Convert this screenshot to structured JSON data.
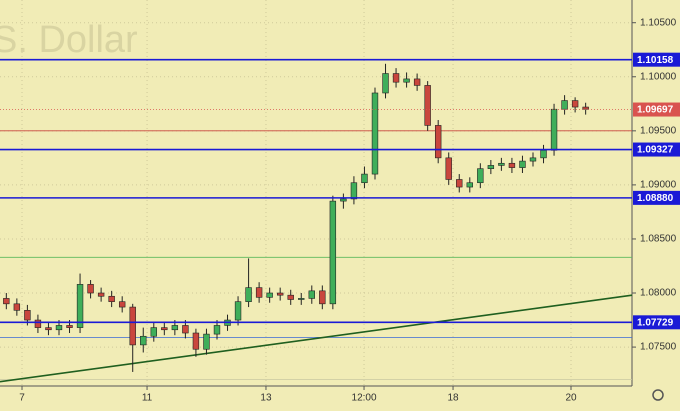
{
  "chart_data": {
    "type": "candlestick",
    "watermark": "S. Dollar",
    "xlim": [
      -0.6,
      59.4
    ],
    "xticks": [
      {
        "value": 1.49,
        "label": "7"
      },
      {
        "value": 13.36,
        "label": "11"
      },
      {
        "value": 24.65,
        "label": "13"
      },
      {
        "value": 33.96,
        "label": "12:00"
      },
      {
        "value": 42.41,
        "label": "18"
      },
      {
        "value": 53.61,
        "label": "20"
      }
    ],
    "ylim": [
      1.0714,
      1.1071
    ],
    "yticks": [
      {
        "value": 1.105,
        "label": "1.10500"
      },
      {
        "value": 1.1,
        "label": "1.10000"
      },
      {
        "value": 1.095,
        "label": "1.09500"
      },
      {
        "value": 1.09,
        "label": "1.09000"
      },
      {
        "value": 1.085,
        "label": "1.08500"
      },
      {
        "value": 1.08,
        "label": "1.08000"
      },
      {
        "value": 1.075,
        "label": "1.07500"
      }
    ],
    "grid": true,
    "up_color": "#3fae5a",
    "down_color": "#c9463d",
    "open": [
      1.0795,
      1.079,
      1.0784,
      1.0775,
      1.0768,
      1.0766,
      1.077,
      1.0768,
      1.0808,
      1.08,
      1.0797,
      1.0792,
      1.0787,
      1.0752,
      1.076,
      1.0768,
      1.0766,
      1.077,
      1.0763,
      1.0748,
      1.0762,
      1.077,
      1.0775,
      1.0792,
      1.0805,
      1.0796,
      1.08,
      1.0798,
      1.0794,
      1.0795,
      1.0802,
      1.079,
      1.0885,
      1.0887,
      1.0902,
      1.091,
      1.0985,
      1.1003,
      1.0995,
      1.0998,
      1.0992,
      1.0955,
      1.0925,
      1.0905,
      1.0898,
      1.0902,
      1.0915,
      1.0918,
      1.092,
      1.0916,
      1.0922,
      1.0925,
      1.0932,
      1.097,
      1.0978,
      1.0972
    ],
    "high": [
      1.08,
      1.0795,
      1.0789,
      1.078,
      1.0773,
      1.0775,
      1.0775,
      1.0818,
      1.0812,
      1.0805,
      1.0802,
      1.0797,
      1.079,
      1.0768,
      1.0773,
      1.0773,
      1.0775,
      1.0775,
      1.0767,
      1.0767,
      1.0775,
      1.078,
      1.0797,
      1.0832,
      1.081,
      1.0805,
      1.0805,
      1.0803,
      1.08,
      1.0807,
      1.0807,
      1.089,
      1.0892,
      1.0908,
      1.0917,
      1.099,
      1.1012,
      1.1008,
      1.1004,
      1.1003,
      1.0996,
      1.096,
      1.093,
      1.091,
      1.0907,
      1.092,
      1.0923,
      1.0925,
      1.0925,
      1.0927,
      1.093,
      1.0937,
      1.0975,
      1.0983,
      1.0981,
      1.0976
    ],
    "low": [
      1.0785,
      1.0779,
      1.077,
      1.0763,
      1.0761,
      1.0761,
      1.0763,
      1.0763,
      1.0795,
      1.0792,
      1.0787,
      1.0782,
      1.0727,
      1.0745,
      1.0755,
      1.0761,
      1.0761,
      1.0758,
      1.0741,
      1.0743,
      1.0757,
      1.0765,
      1.077,
      1.0787,
      1.0791,
      1.0791,
      1.0793,
      1.0789,
      1.0789,
      1.079,
      1.0785,
      1.0785,
      1.0878,
      1.0882,
      1.0897,
      1.0905,
      1.098,
      1.099,
      1.099,
      1.0987,
      1.095,
      1.092,
      1.09,
      1.0893,
      1.0893,
      1.0897,
      1.091,
      1.0913,
      1.0911,
      1.0911,
      1.0917,
      1.092,
      1.0927,
      1.0965,
      1.0967,
      1.0965
    ],
    "close": [
      1.079,
      1.0784,
      1.0775,
      1.0768,
      1.0766,
      1.077,
      1.0768,
      1.0808,
      1.08,
      1.0797,
      1.0792,
      1.0787,
      1.0752,
      1.076,
      1.0768,
      1.0766,
      1.077,
      1.0763,
      1.0748,
      1.0762,
      1.077,
      1.0775,
      1.0792,
      1.0805,
      1.0796,
      1.08,
      1.0798,
      1.0794,
      1.0795,
      1.0802,
      1.079,
      1.0885,
      1.0887,
      1.0902,
      1.091,
      1.0985,
      1.1003,
      1.0995,
      1.0998,
      1.0992,
      1.0955,
      1.0925,
      1.0905,
      1.0898,
      1.0902,
      1.0915,
      1.0918,
      1.092,
      1.0916,
      1.0922,
      1.0925,
      1.0932,
      1.097,
      1.0978,
      1.0972,
      1.097
    ],
    "levels": [
      {
        "value": 1.10158,
        "label": "1.10158",
        "color": "#1a1ad6"
      },
      {
        "value": 1.09327,
        "label": "1.09327",
        "color": "#1a1ad6"
      },
      {
        "value": 1.0888,
        "label": "1.08880",
        "color": "#1a1ad6"
      },
      {
        "value": 1.07729,
        "label": "1.07729",
        "color": "#1a1ad6"
      }
    ],
    "price": {
      "value": 1.09697,
      "label": "1.09697",
      "color": "#d9534f"
    },
    "lines": [
      {
        "value": 1.095,
        "color": "#c9463d"
      },
      {
        "value": 1.0833,
        "color": "#5cb85c"
      },
      {
        "value": 1.0759,
        "color": "#3a6ad6"
      },
      {
        "value": 1.072,
        "color": "#c8c8a0"
      }
    ],
    "trendline": {
      "x": [
        -0.6,
        59.4
      ],
      "values": [
        1.0718,
        1.0798
      ],
      "color": "#1f5f1f"
    }
  }
}
